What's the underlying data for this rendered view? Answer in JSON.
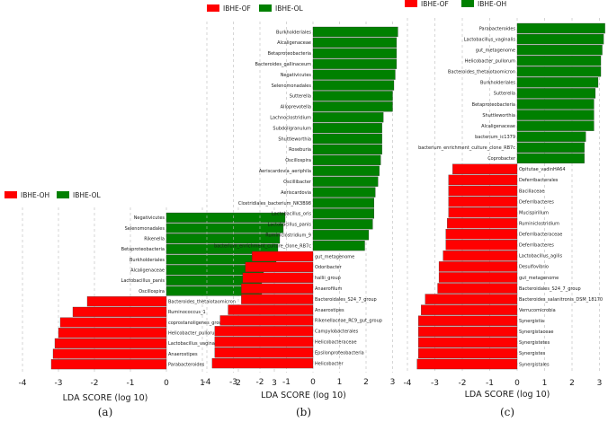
{
  "colors": {
    "negative": "#ff0000",
    "positive": "#008000",
    "grid": "#bbbbbb"
  },
  "chart_data": [
    {
      "type": "bar",
      "orientation": "horizontal",
      "panel_label": "(a)",
      "xlabel": "LDA SCORE (log 10)",
      "xlim": [
        -4,
        4
      ],
      "xticks": [
        "-4",
        "-3",
        "-2",
        "-1",
        "0",
        "1",
        "2",
        "3"
      ],
      "legend": [
        {
          "name": "IBHE-OH",
          "color": "#ff0000"
        },
        {
          "name": "IBHE-OL",
          "color": "#008000"
        }
      ],
      "categories": [
        "Negativicutes",
        "Selenomonadales",
        "Rikenella",
        "Betaproteobacteria",
        "Burkholderiales",
        "Alcaligenaceae",
        "Lactobacillus_panis",
        "Oscillospira",
        "Bacteroides_thetaiotaomicron",
        "Ruminococcus_1",
        "coprostanoligenes_group",
        "Helicobacter_pullorum",
        "Lactobacillus_vaginalis",
        "Anaerostipes",
        "Parabacteroides"
      ],
      "values": [
        3.3,
        3.25,
        3.15,
        3.1,
        3.05,
        2.7,
        2.65,
        2.65,
        -2.2,
        -2.6,
        -2.95,
        -3.0,
        -3.1,
        -3.15,
        -3.2
      ]
    },
    {
      "type": "bar",
      "orientation": "horizontal",
      "panel_label": "(b)",
      "xlabel": "LDA SCORE (log 10)",
      "xlim": [
        -4,
        3.3
      ],
      "xticks": [
        "-4",
        "-3",
        "-2",
        "-1",
        "0",
        "1",
        "2",
        "3"
      ],
      "legend": [
        {
          "name": "IBHE-OF",
          "color": "#ff0000"
        },
        {
          "name": "IBHE-OL",
          "color": "#008000"
        }
      ],
      "categories": [
        "Burkholderiales",
        "Alcaligenaceae",
        "Betaproteobacteria",
        "Bacteroides_gallinaceum",
        "Negativicutes",
        "Selenomonadales",
        "Sutterella",
        "Alloprevotella",
        "Lachnoclostridium",
        "Subdoligranulum",
        "Shuttleworthia",
        "Roseburia",
        "Oscillospira",
        "Aeriscardovia_aeriphila",
        "Oscillibacter",
        "Aeriscardovia",
        "Clostridiales_bacterium_NK3B98",
        "Lactobacillus_oris",
        "Lactobacillus_panis",
        "Ruminiclostridium_9",
        "bacterium_enrichment_culture_clone_RB7c",
        "gut_metagenome",
        "Odoribacter",
        "hallii_group",
        "Anaerofilum",
        "Bacteroidales_S24_7_group",
        "Anaerostipes",
        "Rikenellaceae_RC9_gut_group",
        "Campylobacterales",
        "Helicobacteraceae",
        "Epsilonproteobacteria",
        "Helicobacter"
      ],
      "values": [
        3.2,
        3.15,
        3.15,
        3.15,
        3.1,
        3.05,
        3.0,
        3.0,
        2.65,
        2.6,
        2.6,
        2.6,
        2.55,
        2.5,
        2.45,
        2.35,
        2.3,
        2.3,
        2.25,
        2.1,
        1.95,
        -2.3,
        -2.55,
        -2.65,
        -2.7,
        -2.7,
        -3.2,
        -3.5,
        -3.7,
        -3.7,
        -3.7,
        -3.8
      ]
    },
    {
      "type": "bar",
      "orientation": "horizontal",
      "panel_label": "(c)",
      "xlabel": "LDA SCORE (log 10)",
      "xlim": [
        -4,
        3.2
      ],
      "xticks": [
        "-4",
        "-3",
        "-2",
        "-1",
        "0",
        "1",
        "2",
        "3"
      ],
      "legend": [
        {
          "name": "IBHE-OF",
          "color": "#ff0000"
        },
        {
          "name": "IBHE-OH",
          "color": "#008000"
        }
      ],
      "categories": [
        "Parabacteroides",
        "Lactobacillus_vaginalis",
        "gut_metagenome",
        "Helicobacter_pullorum",
        "Bacteroides_thetaiotaomicron",
        "Burkholderiales",
        "Sutterella",
        "Betaproteobacteria",
        "Shuttleworthia",
        "Alcaligenaceae",
        "bacterium_ic1379",
        "bacterium_enrichment_culture_clone_RB7c",
        "Coprobacter",
        "Opitutae_vadinHA64",
        "Deferribacterales",
        "Bacillaceae",
        "Deferribacteres",
        "Mucispirillum",
        "Ruminiclostridium",
        "Deferribacteraceae",
        "Deferribacteres",
        "Lactobacillus_agilis",
        "Desulfovibrio",
        "gut_metagenome",
        "Bacteroidales_S24_7_group",
        "Bacteroides_salanitronis_DSM_18170",
        "Verrucomicrobia",
        "Synergistia",
        "Synergistaceae",
        "Synergistetes",
        "Synergistes",
        "Synergistales"
      ],
      "values": [
        3.2,
        3.15,
        3.1,
        3.05,
        3.05,
        2.95,
        2.85,
        2.8,
        2.8,
        2.8,
        2.5,
        2.45,
        2.45,
        -2.35,
        -2.5,
        -2.5,
        -2.5,
        -2.5,
        -2.55,
        -2.6,
        -2.6,
        -2.7,
        -2.85,
        -2.85,
        -2.9,
        -3.35,
        -3.5,
        -3.6,
        -3.6,
        -3.6,
        -3.6,
        -3.65
      ]
    }
  ]
}
